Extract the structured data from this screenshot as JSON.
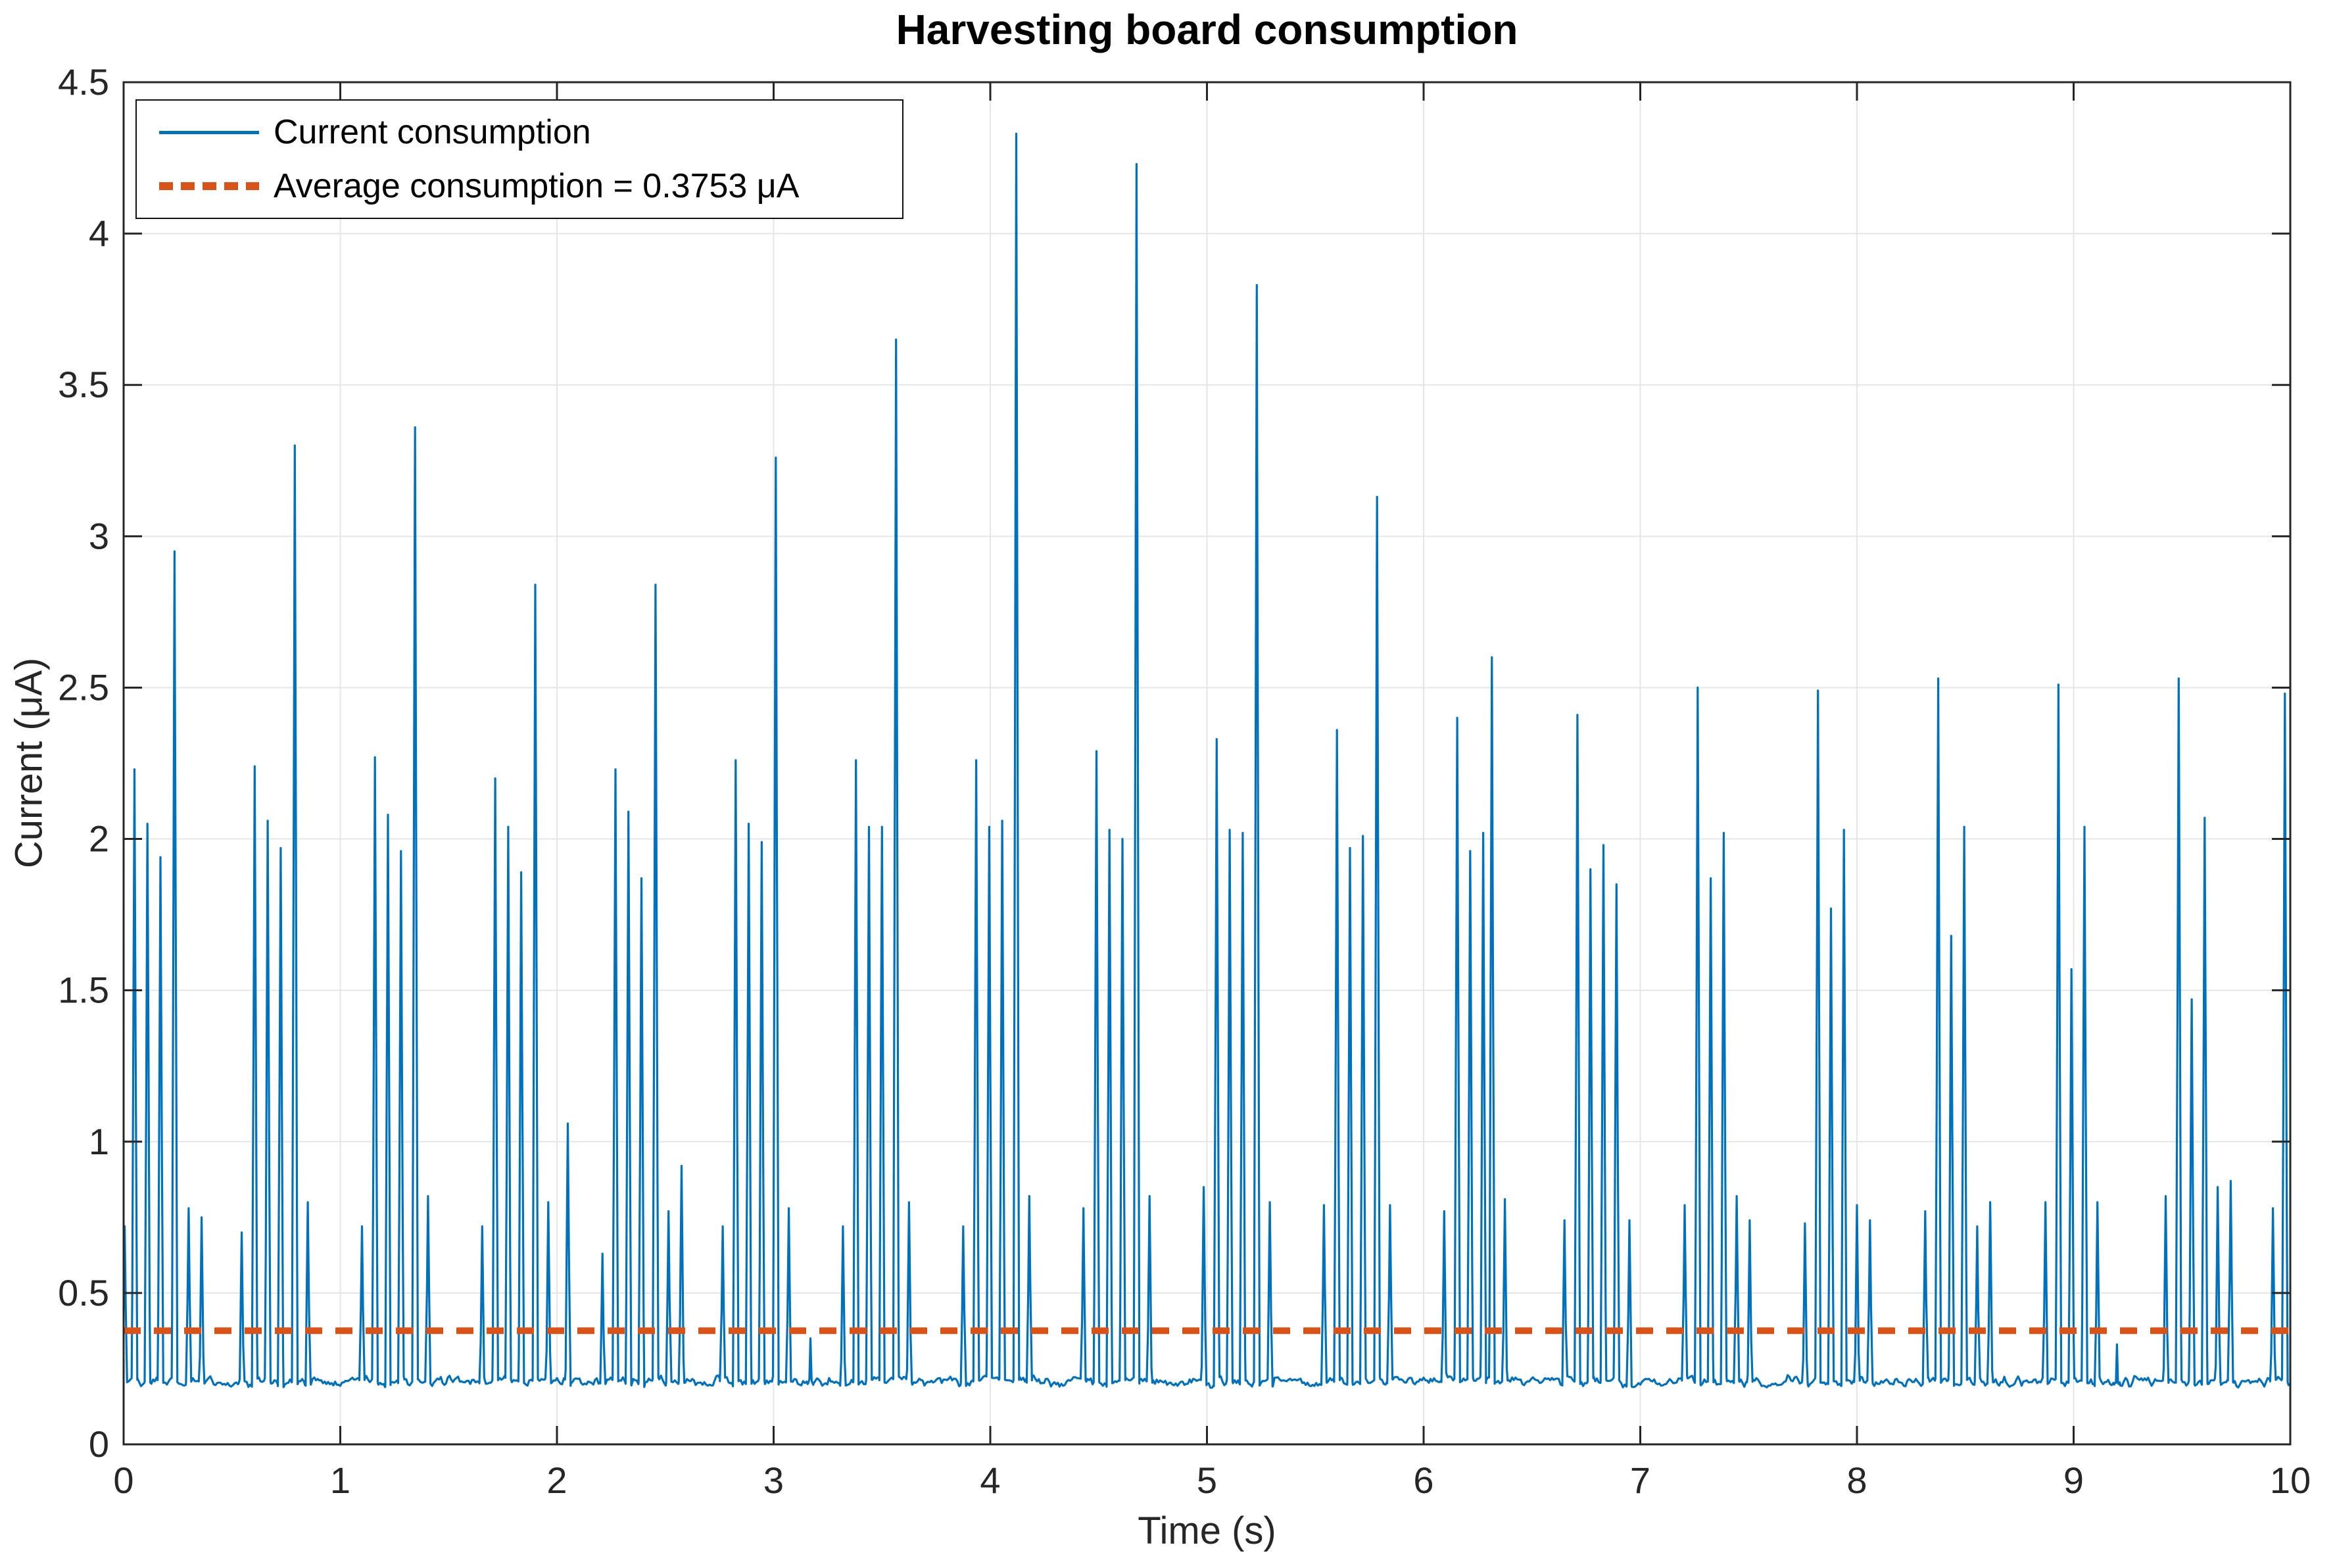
{
  "chart_data": {
    "type": "line",
    "title": "Harvesting board consumption",
    "xlabel": "Time (s)",
    "ylabel": "Current (μA)",
    "xlim": [
      0,
      10
    ],
    "ylim": [
      0,
      4.5
    ],
    "xticks": [
      0,
      1,
      2,
      3,
      4,
      5,
      6,
      7,
      8,
      9,
      10
    ],
    "xtick_labels": [
      "0",
      "1",
      "2",
      "3",
      "4",
      "5",
      "6",
      "7",
      "8",
      "9",
      "10"
    ],
    "yticks": [
      0,
      0.5,
      1,
      1.5,
      2,
      2.5,
      3,
      3.5,
      4,
      4.5
    ],
    "ytick_labels": [
      "0",
      "0.5",
      "1",
      "1.5",
      "2",
      "2.5",
      "3",
      "3.5",
      "4",
      "4.5"
    ],
    "grid": true,
    "colors": {
      "line": "#0072BD",
      "average": "#D95319",
      "grid": "#E6E6E6",
      "axis": "#262626",
      "title_text": "#000000"
    },
    "legend": {
      "position": "top-left",
      "entries": [
        {
          "label": "Current consumption",
          "color": "#0072BD",
          "line_style": "solid"
        },
        {
          "label": "Average consumption = 0.3753 μA",
          "color": "#D95319",
          "line_style": "dotted"
        }
      ]
    },
    "average_value": 0.3753,
    "series": [
      {
        "name": "Current consumption",
        "baseline_level": 0.2,
        "baseline_noise": 0.03,
        "spike_half_width_s": 0.013,
        "spikes": [
          [
            0.005,
            0.72
          ],
          [
            0.05,
            2.23
          ],
          [
            0.11,
            2.05
          ],
          [
            0.17,
            1.94
          ],
          [
            0.235,
            2.95
          ],
          [
            0.3,
            0.78
          ],
          [
            0.36,
            0.75
          ],
          [
            0.545,
            0.7
          ],
          [
            0.605,
            2.24
          ],
          [
            0.665,
            2.06
          ],
          [
            0.725,
            1.97
          ],
          [
            0.79,
            3.3
          ],
          [
            0.85,
            0.8
          ],
          [
            1.1,
            0.72
          ],
          [
            1.16,
            2.27
          ],
          [
            1.22,
            2.08
          ],
          [
            1.28,
            1.96
          ],
          [
            1.345,
            3.36
          ],
          [
            1.405,
            0.82
          ],
          [
            1.655,
            0.72
          ],
          [
            1.715,
            2.2
          ],
          [
            1.775,
            2.04
          ],
          [
            1.835,
            1.89
          ],
          [
            1.9,
            2.84
          ],
          [
            1.96,
            0.8
          ],
          [
            2.05,
            1.06
          ],
          [
            2.21,
            0.63
          ],
          [
            2.27,
            2.23
          ],
          [
            2.33,
            2.09
          ],
          [
            2.39,
            1.87
          ],
          [
            2.455,
            2.84
          ],
          [
            2.515,
            0.77
          ],
          [
            2.575,
            0.92
          ],
          [
            2.765,
            0.72
          ],
          [
            2.825,
            2.26
          ],
          [
            2.885,
            2.05
          ],
          [
            2.945,
            1.99
          ],
          [
            3.01,
            3.26
          ],
          [
            3.07,
            0.78
          ],
          [
            3.17,
            0.35
          ],
          [
            3.32,
            0.72
          ],
          [
            3.38,
            2.26
          ],
          [
            3.44,
            2.04
          ],
          [
            3.5,
            2.04
          ],
          [
            3.565,
            3.65
          ],
          [
            3.625,
            0.8
          ],
          [
            3.875,
            0.72
          ],
          [
            3.935,
            2.26
          ],
          [
            3.995,
            2.04
          ],
          [
            4.055,
            2.06
          ],
          [
            4.12,
            4.33
          ],
          [
            4.18,
            0.82
          ],
          [
            4.43,
            0.78
          ],
          [
            4.49,
            2.29
          ],
          [
            4.55,
            2.03
          ],
          [
            4.61,
            2.0
          ],
          [
            4.675,
            4.23
          ],
          [
            4.735,
            0.82
          ],
          [
            4.985,
            0.85
          ],
          [
            5.045,
            2.33
          ],
          [
            5.105,
            2.03
          ],
          [
            5.165,
            2.02
          ],
          [
            5.23,
            3.83
          ],
          [
            5.29,
            0.8
          ],
          [
            5.54,
            0.79
          ],
          [
            5.6,
            2.36
          ],
          [
            5.66,
            1.97
          ],
          [
            5.72,
            2.01
          ],
          [
            5.785,
            3.13
          ],
          [
            5.845,
            0.79
          ],
          [
            6.095,
            0.77
          ],
          [
            6.155,
            2.4
          ],
          [
            6.215,
            1.96
          ],
          [
            6.275,
            2.02
          ],
          [
            6.315,
            2.6
          ],
          [
            6.375,
            0.81
          ],
          [
            6.65,
            0.74
          ],
          [
            6.71,
            2.41
          ],
          [
            6.77,
            1.9
          ],
          [
            6.83,
            1.98
          ],
          [
            6.89,
            1.85
          ],
          [
            6.95,
            0.74
          ],
          [
            7.205,
            0.79
          ],
          [
            7.265,
            2.5
          ],
          [
            7.325,
            1.87
          ],
          [
            7.385,
            2.02
          ],
          [
            7.445,
            0.82
          ],
          [
            7.505,
            0.74
          ],
          [
            7.76,
            0.73
          ],
          [
            7.82,
            2.49
          ],
          [
            7.88,
            1.77
          ],
          [
            7.94,
            2.03
          ],
          [
            8.0,
            0.79
          ],
          [
            8.06,
            0.74
          ],
          [
            8.315,
            0.77
          ],
          [
            8.375,
            2.53
          ],
          [
            8.435,
            1.68
          ],
          [
            8.495,
            2.04
          ],
          [
            8.555,
            0.72
          ],
          [
            8.615,
            0.8
          ],
          [
            8.87,
            0.8
          ],
          [
            8.93,
            2.51
          ],
          [
            8.99,
            1.57
          ],
          [
            9.05,
            2.04
          ],
          [
            9.11,
            0.8
          ],
          [
            9.2,
            0.33
          ],
          [
            9.425,
            0.82
          ],
          [
            9.485,
            2.53
          ],
          [
            9.545,
            1.47
          ],
          [
            9.605,
            2.07
          ],
          [
            9.665,
            0.85
          ],
          [
            9.725,
            0.87
          ],
          [
            9.92,
            0.78
          ],
          [
            9.975,
            2.48
          ]
        ]
      },
      {
        "name": "Average consumption = 0.3753 μA",
        "value": 0.3753
      }
    ]
  }
}
